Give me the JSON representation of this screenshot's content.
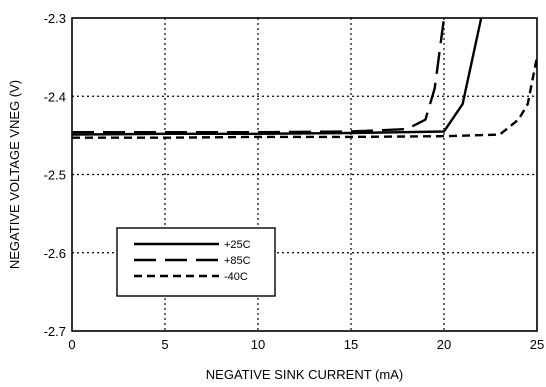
{
  "chart_data": {
    "type": "line",
    "title": "",
    "xlabel": "NEGATIVE SINK CURRENT (mA)",
    "ylabel": "NEGATIVE VOLTAGE VNEG (V)",
    "xlim": [
      0,
      25
    ],
    "ylim": [
      -2.7,
      -2.3
    ],
    "x_ticks": [
      0,
      5,
      10,
      15,
      20,
      25
    ],
    "x_tick_labels": [
      "0",
      "5",
      "10",
      "15",
      "20",
      "25"
    ],
    "y_ticks": [
      -2.3,
      -2.4,
      -2.5,
      -2.6,
      -2.7
    ],
    "y_tick_labels": [
      "-2.3",
      "-2.4",
      "-2.5",
      "-2.6",
      "-2.7"
    ],
    "grid": "dotted",
    "legend_position": "lower-left",
    "series": [
      {
        "name": "+25C",
        "style": "solid",
        "x": [
          0,
          5,
          10,
          15,
          20,
          21,
          22
        ],
        "y": [
          -2.449,
          -2.448,
          -2.448,
          -2.447,
          -2.445,
          -2.41,
          -2.3
        ]
      },
      {
        "name": "+85C",
        "style": "long-dash",
        "x": [
          0,
          5,
          10,
          15,
          18,
          19,
          19.5,
          20
        ],
        "y": [
          -2.446,
          -2.446,
          -2.446,
          -2.445,
          -2.442,
          -2.43,
          -2.39,
          -2.3
        ]
      },
      {
        "name": "-40C",
        "style": "short-dash",
        "x": [
          0,
          5,
          10,
          15,
          20,
          23,
          24,
          24.5,
          25
        ],
        "y": [
          -2.453,
          -2.453,
          -2.452,
          -2.452,
          -2.451,
          -2.449,
          -2.43,
          -2.41,
          -2.35
        ]
      }
    ]
  }
}
